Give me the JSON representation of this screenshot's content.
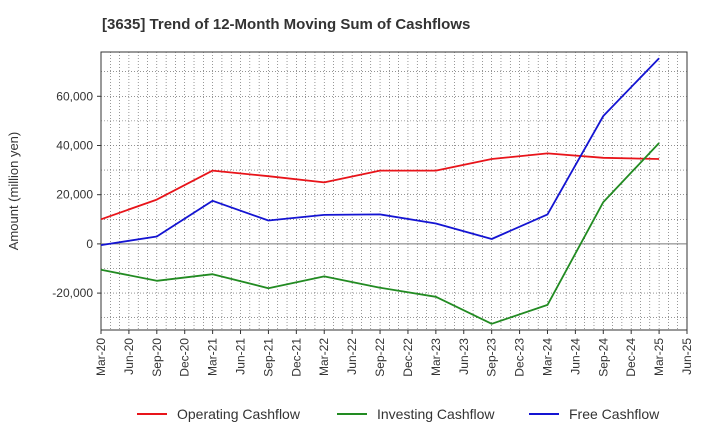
{
  "chart_data": {
    "type": "line",
    "title": "[3635]  Trend of 12-Month Moving Sum of Cashflows",
    "xlabel": "",
    "ylabel": "Amount (million yen)",
    "x": [
      "Mar-20",
      "Jun-20",
      "Sep-20",
      "Dec-20",
      "Mar-21",
      "Jun-21",
      "Sep-21",
      "Dec-21",
      "Mar-22",
      "Jun-22",
      "Sep-22",
      "Dec-22",
      "Mar-23",
      "Jun-23",
      "Sep-23",
      "Dec-23",
      "Mar-24",
      "Jun-24",
      "Sep-24",
      "Dec-24",
      "Mar-25",
      "Jun-25"
    ],
    "yticks": [
      -20000,
      0,
      20000,
      40000,
      60000
    ],
    "ytick_labels": [
      "-20,000",
      "0",
      "20,000",
      "40,000",
      "60,000"
    ],
    "ylim": [
      -35000,
      78000
    ],
    "grid": true,
    "legend_position": "bottom",
    "series": [
      {
        "name": "Operating Cashflow",
        "color": "#e8141a",
        "points": [
          [
            "Mar-20",
            10000
          ],
          [
            "Sep-20",
            18000
          ],
          [
            "Mar-21",
            29800
          ],
          [
            "Sep-21",
            27500
          ],
          [
            "Mar-22",
            25000
          ],
          [
            "Sep-22",
            29800
          ],
          [
            "Mar-23",
            29800
          ],
          [
            "Sep-23",
            34500
          ],
          [
            "Mar-24",
            36800
          ],
          [
            "Sep-24",
            35000
          ],
          [
            "Mar-25",
            34500
          ]
        ]
      },
      {
        "name": "Investing Cashflow",
        "color": "#228b22",
        "points": [
          [
            "Mar-20",
            -10500
          ],
          [
            "Sep-20",
            -15000
          ],
          [
            "Mar-21",
            -12300
          ],
          [
            "Sep-21",
            -18000
          ],
          [
            "Mar-22",
            -13200
          ],
          [
            "Sep-22",
            -17800
          ],
          [
            "Mar-23",
            -21500
          ],
          [
            "Sep-23",
            -32500
          ],
          [
            "Mar-24",
            -24800
          ],
          [
            "Sep-24",
            17000
          ],
          [
            "Mar-25",
            41000
          ]
        ]
      },
      {
        "name": "Free Cashflow",
        "color": "#1414d2",
        "points": [
          [
            "Mar-20",
            -500
          ],
          [
            "Sep-20",
            3000
          ],
          [
            "Mar-21",
            17500
          ],
          [
            "Sep-21",
            9500
          ],
          [
            "Mar-22",
            11800
          ],
          [
            "Sep-22",
            12000
          ],
          [
            "Mar-23",
            8300
          ],
          [
            "Sep-23",
            2000
          ],
          [
            "Mar-24",
            12000
          ],
          [
            "Sep-24",
            52000
          ],
          [
            "Mar-25",
            75500
          ]
        ]
      }
    ]
  }
}
